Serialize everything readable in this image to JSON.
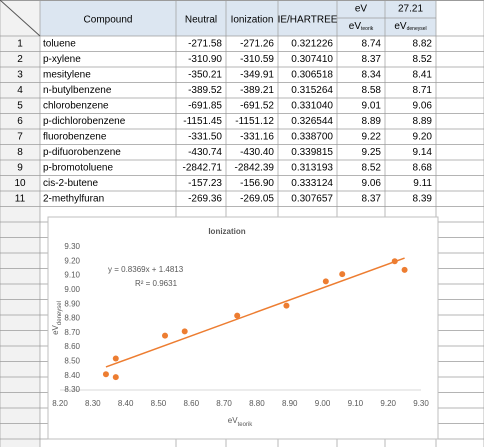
{
  "table": {
    "corner": "",
    "header": [
      "Compound",
      "Neutral",
      "Ionization",
      "IE/HARTREE",
      "eV",
      "27.21"
    ],
    "subheader": [
      {
        "main": "eV",
        "sub": "teorik"
      },
      {
        "main": "eV",
        "sub": "deneysel"
      }
    ],
    "rows": [
      [
        "1",
        "toluene",
        "-271.58",
        "-271.26",
        "0.321226",
        "8.74",
        "8.82"
      ],
      [
        "2",
        "p-xylene",
        "-310.90",
        "-310.59",
        "0.307410",
        "8.37",
        "8.52"
      ],
      [
        "3",
        "mesitylene",
        "-350.21",
        "-349.91",
        "0.306518",
        "8.34",
        "8.41"
      ],
      [
        "4",
        "n-butylbenzene",
        "-389.52",
        "-389.21",
        "0.315264",
        "8.58",
        "8.71"
      ],
      [
        "5",
        "chlorobenzene",
        "-691.85",
        "-691.52",
        "0.331040",
        "9.01",
        "9.06"
      ],
      [
        "6",
        "p-dichlorobenzene",
        "-1151.45",
        "-1151.12",
        "0.326544",
        "8.89",
        "8.89"
      ],
      [
        "7",
        "fluorobenzene",
        "-331.50",
        "-331.16",
        "0.338700",
        "9.22",
        "9.20"
      ],
      [
        "8",
        "p-difuorobenzene",
        "-430.74",
        "-430.40",
        "0.339815",
        "9.25",
        "9.14"
      ],
      [
        "9",
        "p-bromotoluene",
        "-2842.71",
        "-2842.39",
        "0.313193",
        "8.52",
        "8.68"
      ],
      [
        "10",
        "cis-2-butene",
        "-157.23",
        "-156.90",
        "0.333124",
        "9.06",
        "9.11"
      ],
      [
        "11",
        "2-methylfuran",
        "-269.36",
        "-269.05",
        "0.307657",
        "8.37",
        "8.39"
      ]
    ]
  },
  "chart_data": {
    "type": "scatter",
    "title": "Ionization",
    "xlabel": {
      "main": "eV",
      "sub": "teorik"
    },
    "ylabel": {
      "main": "eV",
      "sub": "deneysel"
    },
    "x": [
      8.74,
      8.37,
      8.34,
      8.58,
      9.01,
      8.89,
      9.22,
      9.25,
      8.52,
      9.06,
      8.37
    ],
    "series": [
      {
        "name": "Ionization",
        "color": "#ed7d31",
        "values": [
          8.82,
          8.52,
          8.41,
          8.71,
          9.06,
          8.89,
          9.2,
          9.14,
          8.68,
          9.11,
          8.39
        ]
      }
    ],
    "trendline": {
      "slope": 0.8369,
      "intercept": 1.4813,
      "label": "y = 0.8369x + 1.4813",
      "r2_label": "R² = 0.9631",
      "color": "#ed7d31"
    },
    "xlim": [
      8.2,
      9.3
    ],
    "xticks": [
      {
        "value": 8.2,
        "label": "8.20"
      },
      {
        "value": 8.3,
        "label": "8.30"
      },
      {
        "value": 8.4,
        "label": "8.40"
      },
      {
        "value": 8.5,
        "label": "8.50"
      },
      {
        "value": 8.6,
        "label": "8.60"
      },
      {
        "value": 8.7,
        "label": "8.70"
      },
      {
        "value": 8.8,
        "label": "8.80"
      },
      {
        "value": 8.9,
        "label": "8.90"
      },
      {
        "value": 9.0,
        "label": "9.00"
      },
      {
        "value": 9.1,
        "label": "9.10"
      },
      {
        "value": 9.2,
        "label": "9.20"
      },
      {
        "value": 9.3,
        "label": "9.30"
      }
    ],
    "ylim": [
      8.3,
      9.3
    ],
    "yticks": [
      {
        "value": 8.3,
        "label": "8.30"
      },
      {
        "value": 8.4,
        "label": "8.40"
      },
      {
        "value": 8.5,
        "label": "8.50"
      },
      {
        "value": 8.6,
        "label": "8.60"
      },
      {
        "value": 8.7,
        "label": "8.70"
      },
      {
        "value": 8.8,
        "label": "8.80"
      },
      {
        "value": 8.9,
        "label": "8.90"
      },
      {
        "value": 9.0,
        "label": "9.00"
      },
      {
        "value": 9.1,
        "label": "9.10"
      },
      {
        "value": 9.2,
        "label": "9.20"
      },
      {
        "value": 9.3,
        "label": "9.30"
      }
    ],
    "grid": false
  }
}
